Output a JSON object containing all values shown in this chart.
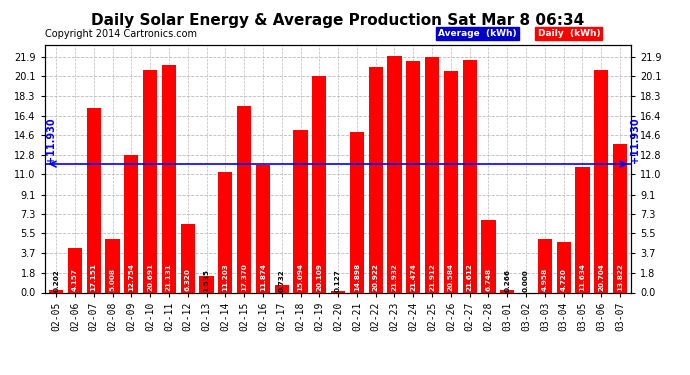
{
  "title": "Daily Solar Energy & Average Production Sat Mar 8 06:34",
  "copyright": "Copyright 2014 Cartronics.com",
  "categories": [
    "02-05",
    "02-06",
    "02-07",
    "02-08",
    "02-09",
    "02-10",
    "02-11",
    "02-12",
    "02-13",
    "02-14",
    "02-15",
    "02-16",
    "02-17",
    "02-18",
    "02-19",
    "02-20",
    "02-21",
    "02-22",
    "02-23",
    "02-24",
    "02-25",
    "02-26",
    "02-27",
    "02-28",
    "03-01",
    "03-02",
    "03-03",
    "03-04",
    "03-05",
    "03-06",
    "03-07"
  ],
  "values": [
    0.202,
    4.157,
    17.151,
    5.008,
    12.754,
    20.691,
    21.131,
    6.32,
    1.535,
    11.203,
    17.37,
    11.874,
    0.732,
    15.094,
    20.109,
    0.127,
    14.898,
    20.922,
    21.932,
    21.474,
    21.912,
    20.584,
    21.612,
    6.748,
    0.266,
    0.0,
    4.958,
    4.72,
    11.634,
    20.704,
    13.822
  ],
  "average": 11.93,
  "bar_color": "#FF0000",
  "average_line_color": "#0000FF",
  "background_color": "#FFFFFF",
  "grid_color": "#BBBBBB",
  "yticks": [
    0.0,
    1.8,
    3.7,
    5.5,
    7.3,
    9.1,
    11.0,
    12.8,
    14.6,
    16.4,
    18.3,
    20.1,
    21.9
  ],
  "legend_avg_bg": "#0000CC",
  "legend_daily_bg": "#FF0000",
  "legend_text_color": "#FFFFFF",
  "avg_label": "+11.930",
  "title_fontsize": 11,
  "copyright_fontsize": 7,
  "tick_fontsize": 7,
  "value_fontsize": 5.2,
  "figsize": [
    6.9,
    3.75
  ],
  "dpi": 100
}
